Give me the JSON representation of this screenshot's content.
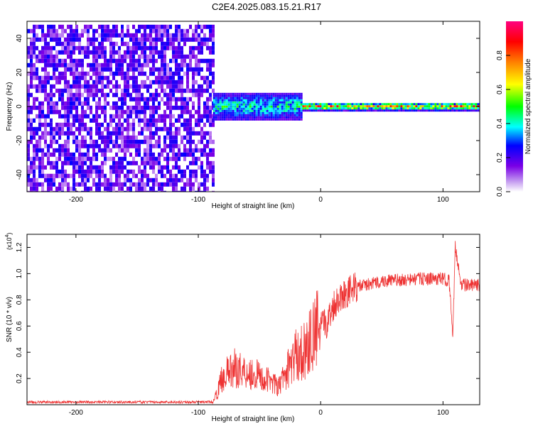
{
  "title": "C2E4.2025.083.15.21.R17",
  "chart_data": [
    {
      "type": "heatmap",
      "title": "C2E4.2025.083.15.21.R17",
      "xlabel": "Height of straight line (km)",
      "ylabel": "Frequency (Hz)",
      "xlim": [
        -240,
        130
      ],
      "ylim": [
        -50,
        50
      ],
      "xticks": [
        -200,
        -100,
        0,
        100
      ],
      "yticks": [
        -40,
        -20,
        0,
        20,
        40
      ],
      "grid": false,
      "colorbar": {
        "label": "Normalized spectral amplitude",
        "range": [
          0,
          1
        ],
        "ticks": [
          0.0,
          0.2,
          0.4,
          0.6,
          0.8
        ],
        "colormap": [
          "#ffffff",
          "#7a00e6",
          "#0000ff",
          "#00ffff",
          "#00ff00",
          "#ffff00",
          "#ff8000",
          "#ff0000",
          "#ff0080"
        ]
      },
      "regions": [
        {
          "x": [
            -240,
            -88
          ],
          "y": [
            -50,
            48
          ],
          "amplitude": [
            0.05,
            0.25
          ],
          "description": "noise"
        },
        {
          "x": [
            -88,
            -15
          ],
          "y": [
            -8,
            8
          ],
          "amplitude": [
            0.2,
            0.5
          ]
        },
        {
          "x": [
            -15,
            130
          ],
          "y": [
            -2,
            2
          ],
          "amplitude": [
            0.4,
            0.95
          ]
        }
      ]
    },
    {
      "type": "line",
      "xlabel": "Height of straight line (km)",
      "ylabel": "SNR (10 * v/v)",
      "y_multiplier_label": "(x10",
      "y_multiplier_exponent": "4",
      "xlim": [
        -240,
        130
      ],
      "ylim": [
        0,
        1.3
      ],
      "xticks": [
        -200,
        -100,
        0,
        100
      ],
      "yticks": [
        0.2,
        0.4,
        0.6,
        0.8,
        1.0,
        1.2
      ],
      "color": "#ee3333",
      "grid": false,
      "series": [
        {
          "x": [
            -240,
            -200,
            -150,
            -100,
            -88,
            -85,
            -80,
            -70,
            -60,
            -50,
            -45,
            -40,
            -35,
            -30,
            -25,
            -20,
            -15,
            -10,
            -5,
            0,
            5,
            10,
            15,
            20,
            25,
            30,
            40,
            50,
            60,
            70,
            80,
            90,
            100,
            105,
            108,
            110,
            115,
            120,
            130
          ],
          "values": [
            0.02,
            0.02,
            0.02,
            0.02,
            0.02,
            0.08,
            0.22,
            0.28,
            0.25,
            0.22,
            0.18,
            0.2,
            0.12,
            0.22,
            0.3,
            0.38,
            0.4,
            0.45,
            0.55,
            0.6,
            0.62,
            0.75,
            0.82,
            0.85,
            0.88,
            0.9,
            0.92,
            0.94,
            0.95,
            0.95,
            0.96,
            0.96,
            0.96,
            0.95,
            0.5,
            1.2,
            0.92,
            0.91,
            0.91
          ]
        }
      ]
    }
  ]
}
